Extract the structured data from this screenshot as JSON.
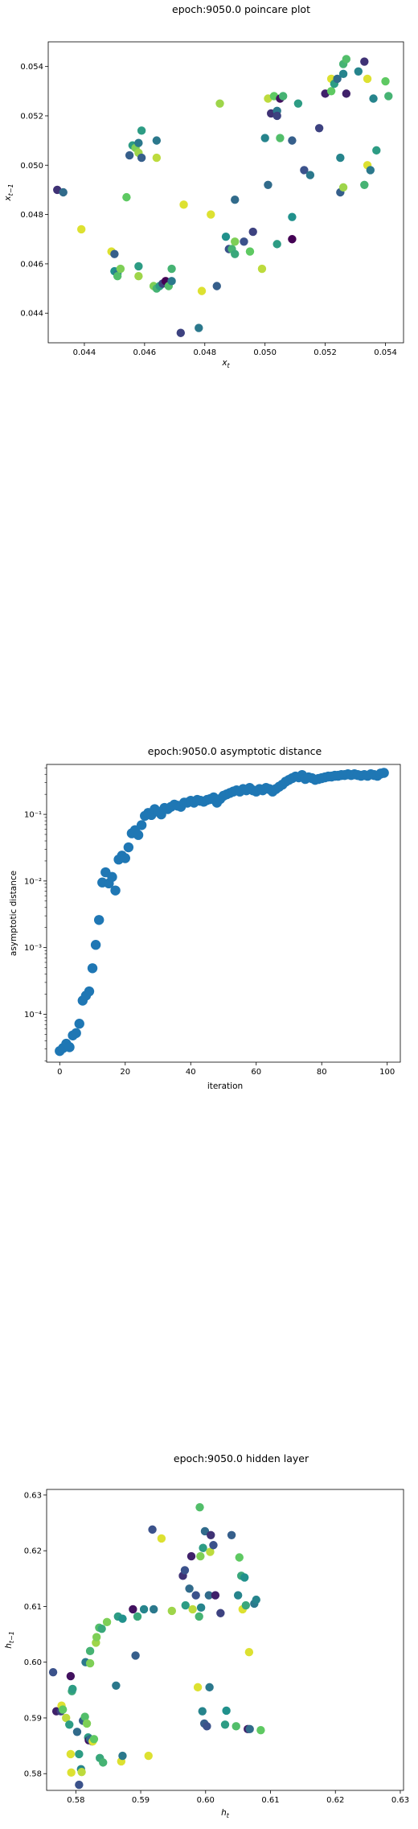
{
  "chart_data": [
    {
      "type": "scatter",
      "title": "epoch:9050.0 poincare plot",
      "xlabel": "x_t",
      "ylabel": "x_{t-1}",
      "xlim": [
        0.0428,
        0.0546
      ],
      "ylim": [
        0.0428,
        0.055
      ],
      "xticks": [
        "0.044",
        "0.046",
        "0.048",
        "0.050",
        "0.052",
        "0.054"
      ],
      "yticks": [
        "0.044",
        "0.046",
        "0.048",
        "0.050",
        "0.052",
        "0.054"
      ],
      "colormap": "viridis",
      "grid": false,
      "points": [
        {
          "x": 0.0431,
          "y": 0.049,
          "c": 0.15
        },
        {
          "x": 0.0433,
          "y": 0.0489,
          "c": 0.35
        },
        {
          "x": 0.0439,
          "y": 0.0474,
          "c": 0.95
        },
        {
          "x": 0.0449,
          "y": 0.0465,
          "c": 0.95
        },
        {
          "x": 0.045,
          "y": 0.0464,
          "c": 0.3
        },
        {
          "x": 0.045,
          "y": 0.0457,
          "c": 0.5
        },
        {
          "x": 0.0451,
          "y": 0.0456,
          "c": 0.4
        },
        {
          "x": 0.0451,
          "y": 0.0455,
          "c": 0.7
        },
        {
          "x": 0.0452,
          "y": 0.0458,
          "c": 0.8
        },
        {
          "x": 0.0454,
          "y": 0.0487,
          "c": 0.75
        },
        {
          "x": 0.0455,
          "y": 0.0504,
          "c": 0.3
        },
        {
          "x": 0.0456,
          "y": 0.0508,
          "c": 0.55
        },
        {
          "x": 0.0457,
          "y": 0.0507,
          "c": 0.8
        },
        {
          "x": 0.0458,
          "y": 0.0505,
          "c": 0.85
        },
        {
          "x": 0.0458,
          "y": 0.0509,
          "c": 0.4
        },
        {
          "x": 0.0459,
          "y": 0.0514,
          "c": 0.55
        },
        {
          "x": 0.0458,
          "y": 0.0459,
          "c": 0.55
        },
        {
          "x": 0.0458,
          "y": 0.0455,
          "c": 0.85
        },
        {
          "x": 0.0459,
          "y": 0.0503,
          "c": 0.3
        },
        {
          "x": 0.0464,
          "y": 0.051,
          "c": 0.4
        },
        {
          "x": 0.0464,
          "y": 0.0503,
          "c": 0.9
        },
        {
          "x": 0.0463,
          "y": 0.0451,
          "c": 0.8
        },
        {
          "x": 0.0464,
          "y": 0.045,
          "c": 0.65
        },
        {
          "x": 0.0465,
          "y": 0.0451,
          "c": 0.55
        },
        {
          "x": 0.0466,
          "y": 0.0452,
          "c": 0.2
        },
        {
          "x": 0.0467,
          "y": 0.0453,
          "c": 0.0
        },
        {
          "x": 0.0468,
          "y": 0.0451,
          "c": 0.7
        },
        {
          "x": 0.0469,
          "y": 0.0453,
          "c": 0.4
        },
        {
          "x": 0.0469,
          "y": 0.0458,
          "c": 0.65
        },
        {
          "x": 0.0472,
          "y": 0.0432,
          "c": 0.2
        },
        {
          "x": 0.0473,
          "y": 0.0484,
          "c": 0.95
        },
        {
          "x": 0.0478,
          "y": 0.0434,
          "c": 0.4
        },
        {
          "x": 0.0479,
          "y": 0.0449,
          "c": 0.95
        },
        {
          "x": 0.0482,
          "y": 0.048,
          "c": 0.95
        },
        {
          "x": 0.0484,
          "y": 0.0451,
          "c": 0.3
        },
        {
          "x": 0.0485,
          "y": 0.0525,
          "c": 0.85
        },
        {
          "x": 0.0487,
          "y": 0.0471,
          "c": 0.5
        },
        {
          "x": 0.0488,
          "y": 0.0466,
          "c": 0.25
        },
        {
          "x": 0.0489,
          "y": 0.0466,
          "c": 0.65
        },
        {
          "x": 0.049,
          "y": 0.0469,
          "c": 0.8
        },
        {
          "x": 0.049,
          "y": 0.0464,
          "c": 0.6
        },
        {
          "x": 0.049,
          "y": 0.0486,
          "c": 0.35
        },
        {
          "x": 0.0493,
          "y": 0.0469,
          "c": 0.25
        },
        {
          "x": 0.0495,
          "y": 0.0465,
          "c": 0.75
        },
        {
          "x": 0.0496,
          "y": 0.0473,
          "c": 0.2
        },
        {
          "x": 0.0499,
          "y": 0.0458,
          "c": 0.9
        },
        {
          "x": 0.05,
          "y": 0.0511,
          "c": 0.45
        },
        {
          "x": 0.0501,
          "y": 0.0492,
          "c": 0.35
        },
        {
          "x": 0.0501,
          "y": 0.0527,
          "c": 0.9
        },
        {
          "x": 0.0502,
          "y": 0.0521,
          "c": 0.15
        },
        {
          "x": 0.0503,
          "y": 0.0528,
          "c": 0.75
        },
        {
          "x": 0.0504,
          "y": 0.0468,
          "c": 0.55
        },
        {
          "x": 0.0504,
          "y": 0.0522,
          "c": 0.4
        },
        {
          "x": 0.0504,
          "y": 0.052,
          "c": 0.2
        },
        {
          "x": 0.0505,
          "y": 0.0527,
          "c": 0.05
        },
        {
          "x": 0.0505,
          "y": 0.0511,
          "c": 0.7
        },
        {
          "x": 0.0506,
          "y": 0.0528,
          "c": 0.65
        },
        {
          "x": 0.0509,
          "y": 0.047,
          "c": 0.0
        },
        {
          "x": 0.0509,
          "y": 0.0479,
          "c": 0.5
        },
        {
          "x": 0.0509,
          "y": 0.051,
          "c": 0.3
        },
        {
          "x": 0.0511,
          "y": 0.0525,
          "c": 0.55
        },
        {
          "x": 0.0513,
          "y": 0.0498,
          "c": 0.25
        },
        {
          "x": 0.0515,
          "y": 0.0496,
          "c": 0.4
        },
        {
          "x": 0.0518,
          "y": 0.0515,
          "c": 0.2
        },
        {
          "x": 0.052,
          "y": 0.0529,
          "c": 0.1
        },
        {
          "x": 0.0522,
          "y": 0.053,
          "c": 0.75
        },
        {
          "x": 0.0522,
          "y": 0.0535,
          "c": 0.95
        },
        {
          "x": 0.0523,
          "y": 0.0533,
          "c": 0.55
        },
        {
          "x": 0.0524,
          "y": 0.0535,
          "c": 0.35
        },
        {
          "x": 0.0525,
          "y": 0.0503,
          "c": 0.45
        },
        {
          "x": 0.0525,
          "y": 0.0489,
          "c": 0.3
        },
        {
          "x": 0.0526,
          "y": 0.0491,
          "c": 0.85
        },
        {
          "x": 0.0526,
          "y": 0.0541,
          "c": 0.65
        },
        {
          "x": 0.0527,
          "y": 0.0543,
          "c": 0.7
        },
        {
          "x": 0.0526,
          "y": 0.0537,
          "c": 0.45
        },
        {
          "x": 0.0527,
          "y": 0.0529,
          "c": 0.1
        },
        {
          "x": 0.0531,
          "y": 0.0538,
          "c": 0.45
        },
        {
          "x": 0.0533,
          "y": 0.0542,
          "c": 0.15
        },
        {
          "x": 0.0533,
          "y": 0.0492,
          "c": 0.65
        },
        {
          "x": 0.0534,
          "y": 0.0535,
          "c": 0.95
        },
        {
          "x": 0.0534,
          "y": 0.05,
          "c": 0.95
        },
        {
          "x": 0.0535,
          "y": 0.0498,
          "c": 0.4
        },
        {
          "x": 0.0536,
          "y": 0.0527,
          "c": 0.45
        },
        {
          "x": 0.0537,
          "y": 0.0506,
          "c": 0.55
        },
        {
          "x": 0.054,
          "y": 0.0534,
          "c": 0.75
        },
        {
          "x": 0.0541,
          "y": 0.0528,
          "c": 0.65
        }
      ]
    },
    {
      "type": "scatter",
      "title": "epoch:9050.0 asymptotic distance",
      "xlabel": "iteration",
      "ylabel": "asymptotic distance",
      "yscale": "log",
      "xlim": [
        -4,
        104
      ],
      "ylim_log10": [
        -4.72,
        -0.25
      ],
      "xticks": [
        "0",
        "20",
        "40",
        "60",
        "80",
        "100"
      ],
      "yticks": [
        "10⁻⁴",
        "10⁻³",
        "10⁻²",
        "10⁻¹"
      ],
      "color": "#1f77b4",
      "grid": false,
      "x": [
        0,
        1,
        2,
        3,
        4,
        5,
        6,
        7,
        8,
        9,
        10,
        11,
        12,
        13,
        14,
        15,
        16,
        17,
        18,
        19,
        20,
        21,
        22,
        23,
        24,
        25,
        26,
        27,
        28,
        29,
        30,
        31,
        32,
        33,
        34,
        35,
        36,
        37,
        38,
        39,
        40,
        41,
        42,
        43,
        44,
        45,
        46,
        47,
        48,
        49,
        50,
        51,
        52,
        53,
        54,
        55,
        56,
        57,
        58,
        59,
        60,
        61,
        62,
        63,
        64,
        65,
        66,
        67,
        68,
        69,
        70,
        71,
        72,
        73,
        74,
        75,
        76,
        77,
        78,
        79,
        80,
        81,
        82,
        83,
        84,
        85,
        86,
        87,
        88,
        89,
        90,
        91,
        92,
        93,
        94,
        95,
        96,
        97,
        98,
        99
      ],
      "y": [
        2.8e-05,
        3.1e-05,
        3.6e-05,
        3.2e-05,
        4.8e-05,
        5.2e-05,
        7.2e-05,
        0.00016,
        0.00019,
        0.00022,
        0.00049,
        0.0011,
        0.0026,
        0.0095,
        0.0135,
        0.0092,
        0.0115,
        0.0072,
        0.021,
        0.024,
        0.022,
        0.032,
        0.052,
        0.058,
        0.049,
        0.069,
        0.095,
        0.105,
        0.098,
        0.12,
        0.11,
        0.1,
        0.125,
        0.12,
        0.13,
        0.14,
        0.135,
        0.13,
        0.15,
        0.15,
        0.16,
        0.15,
        0.165,
        0.16,
        0.155,
        0.165,
        0.17,
        0.18,
        0.15,
        0.17,
        0.19,
        0.2,
        0.21,
        0.22,
        0.23,
        0.22,
        0.24,
        0.23,
        0.25,
        0.23,
        0.22,
        0.24,
        0.23,
        0.25,
        0.24,
        0.22,
        0.24,
        0.26,
        0.28,
        0.31,
        0.33,
        0.35,
        0.37,
        0.36,
        0.39,
        0.34,
        0.36,
        0.35,
        0.33,
        0.34,
        0.35,
        0.36,
        0.37,
        0.37,
        0.38,
        0.38,
        0.39,
        0.39,
        0.4,
        0.39,
        0.4,
        0.39,
        0.38,
        0.39,
        0.38,
        0.4,
        0.39,
        0.38,
        0.41,
        0.42
      ]
    },
    {
      "type": "scatter",
      "title": "epoch:9050.0 hidden layer",
      "xlabel": "h_t",
      "ylabel": "h_{t-1}",
      "xlim": [
        0.5755,
        0.6305
      ],
      "ylim": [
        0.577,
        0.631
      ],
      "xticks": [
        "0.58",
        "0.59",
        "0.60",
        "0.61",
        "0.62",
        "0.63"
      ],
      "yticks": [
        "0.58",
        "0.59",
        "0.60",
        "0.61",
        "0.62",
        "0.63"
      ],
      "colormap": "viridis",
      "grid": false,
      "points": [
        {
          "x": 0.5765,
          "y": 0.5982,
          "c": 0.25
        },
        {
          "x": 0.577,
          "y": 0.5912,
          "c": 0.1
        },
        {
          "x": 0.5777,
          "y": 0.5912,
          "c": 0.2
        },
        {
          "x": 0.5778,
          "y": 0.5922,
          "c": 0.95
        },
        {
          "x": 0.578,
          "y": 0.5915,
          "c": 0.75
        },
        {
          "x": 0.5785,
          "y": 0.59,
          "c": 0.9
        },
        {
          "x": 0.579,
          "y": 0.5888,
          "c": 0.55
        },
        {
          "x": 0.5792,
          "y": 0.5835,
          "c": 0.95
        },
        {
          "x": 0.5792,
          "y": 0.5975,
          "c": 0.05
        },
        {
          "x": 0.5793,
          "y": 0.5802,
          "c": 0.95
        },
        {
          "x": 0.5794,
          "y": 0.5948,
          "c": 0.6
        },
        {
          "x": 0.5795,
          "y": 0.5952,
          "c": 0.55
        },
        {
          "x": 0.5802,
          "y": 0.5875,
          "c": 0.35
        },
        {
          "x": 0.5805,
          "y": 0.578,
          "c": 0.25
        },
        {
          "x": 0.5805,
          "y": 0.5835,
          "c": 0.55
        },
        {
          "x": 0.5808,
          "y": 0.5808,
          "c": 0.45
        },
        {
          "x": 0.5809,
          "y": 0.5803,
          "c": 0.9
        },
        {
          "x": 0.5811,
          "y": 0.5895,
          "c": 0.3
        },
        {
          "x": 0.5814,
          "y": 0.5902,
          "c": 0.7
        },
        {
          "x": 0.5815,
          "y": 0.6,
          "c": 0.4
        },
        {
          "x": 0.5817,
          "y": 0.589,
          "c": 0.8
        },
        {
          "x": 0.5819,
          "y": 0.5865,
          "c": 0.55
        },
        {
          "x": 0.582,
          "y": 0.586,
          "c": 0.05
        },
        {
          "x": 0.5822,
          "y": 0.5862,
          "c": 0.35
        },
        {
          "x": 0.5822,
          "y": 0.5998,
          "c": 0.8
        },
        {
          "x": 0.5822,
          "y": 0.602,
          "c": 0.65
        },
        {
          "x": 0.5825,
          "y": 0.5858,
          "c": 0.25
        },
        {
          "x": 0.5826,
          "y": 0.5858,
          "c": 0.95
        },
        {
          "x": 0.5828,
          "y": 0.5862,
          "c": 0.75
        },
        {
          "x": 0.5831,
          "y": 0.6035,
          "c": 0.85
        },
        {
          "x": 0.5832,
          "y": 0.6045,
          "c": 0.8
        },
        {
          "x": 0.5836,
          "y": 0.6062,
          "c": 0.7
        },
        {
          "x": 0.5837,
          "y": 0.5828,
          "c": 0.6
        },
        {
          "x": 0.584,
          "y": 0.606,
          "c": 0.6
        },
        {
          "x": 0.5842,
          "y": 0.582,
          "c": 0.65
        },
        {
          "x": 0.5848,
          "y": 0.6072,
          "c": 0.8
        },
        {
          "x": 0.5862,
          "y": 0.5958,
          "c": 0.4
        },
        {
          "x": 0.5865,
          "y": 0.6082,
          "c": 0.55
        },
        {
          "x": 0.587,
          "y": 0.5822,
          "c": 0.95
        },
        {
          "x": 0.5872,
          "y": 0.5832,
          "c": 0.4
        },
        {
          "x": 0.5872,
          "y": 0.6078,
          "c": 0.5
        },
        {
          "x": 0.5888,
          "y": 0.6095,
          "c": 0.05
        },
        {
          "x": 0.5892,
          "y": 0.6012,
          "c": 0.3
        },
        {
          "x": 0.5895,
          "y": 0.6082,
          "c": 0.6
        },
        {
          "x": 0.5905,
          "y": 0.6095,
          "c": 0.45
        },
        {
          "x": 0.5912,
          "y": 0.5832,
          "c": 0.95
        },
        {
          "x": 0.5918,
          "y": 0.6238,
          "c": 0.25
        },
        {
          "x": 0.592,
          "y": 0.6095,
          "c": 0.4
        },
        {
          "x": 0.5932,
          "y": 0.6222,
          "c": 0.95
        },
        {
          "x": 0.5948,
          "y": 0.6092,
          "c": 0.85
        },
        {
          "x": 0.5965,
          "y": 0.6155,
          "c": 0.15
        },
        {
          "x": 0.5968,
          "y": 0.6165,
          "c": 0.25
        },
        {
          "x": 0.5969,
          "y": 0.6102,
          "c": 0.55
        },
        {
          "x": 0.5975,
          "y": 0.6132,
          "c": 0.35
        },
        {
          "x": 0.5978,
          "y": 0.619,
          "c": 0.1
        },
        {
          "x": 0.598,
          "y": 0.6095,
          "c": 0.9
        },
        {
          "x": 0.5985,
          "y": 0.612,
          "c": 0.25
        },
        {
          "x": 0.5988,
          "y": 0.5955,
          "c": 0.95
        },
        {
          "x": 0.599,
          "y": 0.6082,
          "c": 0.65
        },
        {
          "x": 0.5991,
          "y": 0.6278,
          "c": 0.7
        },
        {
          "x": 0.5992,
          "y": 0.619,
          "c": 0.8
        },
        {
          "x": 0.5993,
          "y": 0.6098,
          "c": 0.45
        },
        {
          "x": 0.5995,
          "y": 0.5912,
          "c": 0.45
        },
        {
          "x": 0.5996,
          "y": 0.6205,
          "c": 0.55
        },
        {
          "x": 0.5998,
          "y": 0.589,
          "c": 0.3
        },
        {
          "x": 0.5999,
          "y": 0.6235,
          "c": 0.35
        },
        {
          "x": 0.6002,
          "y": 0.5885,
          "c": 0.25
        },
        {
          "x": 0.6005,
          "y": 0.612,
          "c": 0.35
        },
        {
          "x": 0.6006,
          "y": 0.5955,
          "c": 0.4
        },
        {
          "x": 0.6007,
          "y": 0.6198,
          "c": 0.9
        },
        {
          "x": 0.6008,
          "y": 0.6228,
          "c": 0.15
        },
        {
          "x": 0.6012,
          "y": 0.621,
          "c": 0.25
        },
        {
          "x": 0.6015,
          "y": 0.612,
          "c": 0.1
        },
        {
          "x": 0.6023,
          "y": 0.6088,
          "c": 0.2
        },
        {
          "x": 0.603,
          "y": 0.5888,
          "c": 0.55
        },
        {
          "x": 0.6032,
          "y": 0.5913,
          "c": 0.5
        },
        {
          "x": 0.604,
          "y": 0.6228,
          "c": 0.3
        },
        {
          "x": 0.6047,
          "y": 0.5885,
          "c": 0.7
        },
        {
          "x": 0.605,
          "y": 0.612,
          "c": 0.45
        },
        {
          "x": 0.6052,
          "y": 0.6188,
          "c": 0.75
        },
        {
          "x": 0.6055,
          "y": 0.6155,
          "c": 0.6
        },
        {
          "x": 0.6057,
          "y": 0.6095,
          "c": 0.95
        },
        {
          "x": 0.606,
          "y": 0.6152,
          "c": 0.5
        },
        {
          "x": 0.6062,
          "y": 0.6102,
          "c": 0.6
        },
        {
          "x": 0.6065,
          "y": 0.588,
          "c": 0.1
        },
        {
          "x": 0.6067,
          "y": 0.6018,
          "c": 0.95
        },
        {
          "x": 0.6068,
          "y": 0.588,
          "c": 0.35
        },
        {
          "x": 0.6075,
          "y": 0.6105,
          "c": 0.4
        },
        {
          "x": 0.6078,
          "y": 0.6112,
          "c": 0.45
        },
        {
          "x": 0.6085,
          "y": 0.5878,
          "c": 0.75
        }
      ]
    }
  ]
}
